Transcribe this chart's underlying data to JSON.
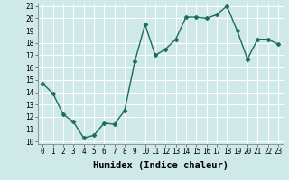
{
  "x": [
    0,
    1,
    2,
    3,
    4,
    5,
    6,
    7,
    8,
    9,
    10,
    11,
    12,
    13,
    14,
    15,
    16,
    17,
    18,
    19,
    20,
    21,
    22,
    23
  ],
  "y": [
    14.7,
    13.9,
    12.2,
    11.6,
    10.3,
    10.5,
    11.5,
    11.4,
    12.5,
    16.5,
    19.5,
    17.0,
    17.5,
    18.3,
    20.1,
    20.1,
    20.0,
    20.3,
    21.0,
    19.0,
    16.7,
    18.3,
    18.3,
    17.9
  ],
  "xlabel": "Humidex (Indice chaleur)",
  "ylim_min": 10,
  "ylim_max": 21,
  "xlim_min": -0.5,
  "xlim_max": 23.5,
  "yticks": [
    10,
    11,
    12,
    13,
    14,
    15,
    16,
    17,
    18,
    19,
    20,
    21
  ],
  "xticks": [
    0,
    1,
    2,
    3,
    4,
    5,
    6,
    7,
    8,
    9,
    10,
    11,
    12,
    13,
    14,
    15,
    16,
    17,
    18,
    19,
    20,
    21,
    22,
    23
  ],
  "line_color": "#1a6b60",
  "marker": "D",
  "marker_size": 2.5,
  "bg_color": "#cee9e8",
  "grid_color": "#ffffff",
  "tick_fontsize": 5.5,
  "xlabel_fontsize": 7.5,
  "linewidth": 1.0
}
